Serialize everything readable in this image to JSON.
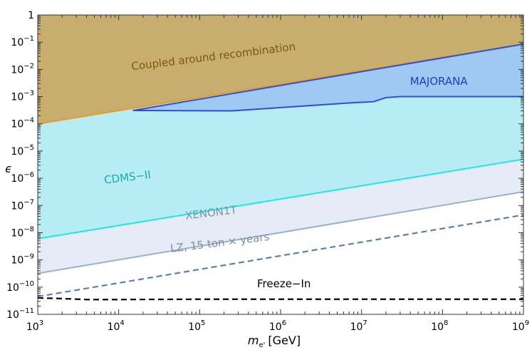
{
  "chart_data": {
    "type": "area",
    "xlabel": "m",
    "xlabel_sub": "e'",
    "xlabel_unit": "[GeV]",
    "ylabel": "ϵ",
    "x_scale": "log",
    "y_scale": "log",
    "xlim": [
      1000.0,
      1000000000.0
    ],
    "ylim": [
      1e-11,
      1
    ],
    "x_ticks": [
      {
        "value": 1000.0,
        "label": "10",
        "exp": "3"
      },
      {
        "value": 10000.0,
        "label": "10",
        "exp": "4"
      },
      {
        "value": 100000.0,
        "label": "10",
        "exp": "5"
      },
      {
        "value": 1000000.0,
        "label": "10",
        "exp": "6"
      },
      {
        "value": 10000000.0,
        "label": "10",
        "exp": "7"
      },
      {
        "value": 100000000.0,
        "label": "10",
        "exp": "8"
      },
      {
        "value": 1000000000.0,
        "label": "10",
        "exp": "9"
      }
    ],
    "y_ticks": [
      {
        "value": 1,
        "label": "1",
        "exp": ""
      },
      {
        "value": 0.1,
        "label": "10",
        "exp": "−1"
      },
      {
        "value": 0.01,
        "label": "10",
        "exp": "−2"
      },
      {
        "value": 0.001,
        "label": "10",
        "exp": "−3"
      },
      {
        "value": 0.0001,
        "label": "10",
        "exp": "−4"
      },
      {
        "value": 1e-05,
        "label": "10",
        "exp": "−5"
      },
      {
        "value": 1e-06,
        "label": "10",
        "exp": "−6"
      },
      {
        "value": 1e-07,
        "label": "10",
        "exp": "−7"
      },
      {
        "value": 1e-08,
        "label": "10",
        "exp": "−8"
      },
      {
        "value": 1e-09,
        "label": "10",
        "exp": "−9"
      },
      {
        "value": 1e-10,
        "label": "10",
        "exp": "−10"
      },
      {
        "value": 1e-11,
        "label": "10",
        "exp": "−11"
      }
    ],
    "series": [
      {
        "name": "Coupled around recombination",
        "kind": "filled-above",
        "fill": "#c8ae6e",
        "stroke": "#e69a2e",
        "x": [
          1000.0,
          1000000000.0
        ],
        "y": [
          0.0001,
          0.085
        ],
        "label_at": [
          150000.0,
          0.022
        ],
        "label_angle": -7,
        "label_color": "#7a5810"
      },
      {
        "name": "MAJORANA",
        "kind": "region",
        "fill": "#9fc8f2",
        "stroke": "#2b4fd8",
        "upper_x": [
          15000.0,
          1000000000.0
        ],
        "upper_y": [
          0.00031,
          0.085
        ],
        "lower_x": [
          15000.0,
          20000.0,
          250000.0,
          8000000.0,
          14000000.0,
          20000000.0,
          30000000.0,
          100000000.0,
          1000000000.0
        ],
        "lower_y": [
          0.00031,
          0.00031,
          0.0003,
          0.0006,
          0.00065,
          0.00092,
          0.001,
          0.001,
          0.001
        ],
        "label_at": [
          90000000.0,
          0.0027
        ],
        "label_color": "#1f3fc0"
      },
      {
        "name": "CDMS−II",
        "kind": "filled-above",
        "fill": "#b8ecf4",
        "stroke": "#22e4ee",
        "x": [
          1000.0,
          1000000000.0
        ],
        "y": [
          6e-09,
          5e-06
        ],
        "label_at": [
          13000.0,
          8e-07
        ],
        "label_angle": -7,
        "label_color": "#1aa8b0"
      },
      {
        "name": "XENON1T",
        "kind": "filled-above",
        "fill": "#e6ecf5",
        "stroke": "#9ab0cc",
        "x": [
          1000.0,
          1000000000.0
        ],
        "y": [
          3.2e-10,
          3.2e-07
        ],
        "label_at": [
          140000.0,
          4e-08
        ],
        "label_angle": -7,
        "label_color": "#7f93a8"
      },
      {
        "name": "LZ, 15 ton × years",
        "kind": "dashed-line",
        "stroke": "#5a80ad",
        "x": [
          1000.0,
          1000000000.0
        ],
        "y": [
          4.5e-11,
          4.5e-08
        ],
        "label_at": [
          180000.0,
          3.2e-09
        ],
        "label_angle": -7,
        "label_color": "#7d8da0"
      },
      {
        "name": "Freeze−In",
        "kind": "dashed-line",
        "stroke": "#000000",
        "x": [
          1000.0,
          2000.0,
          4000.0,
          10000.0,
          100000.0,
          1000000.0,
          10000000.0,
          100000000.0,
          1000000000.0
        ],
        "y": [
          4e-11,
          3.8e-11,
          3.5e-11,
          3.5e-11,
          3.6e-11,
          3.6e-11,
          3.6e-11,
          3.6e-11,
          3.6e-11
        ],
        "label_at": [
          1100000.0,
          1e-10
        ],
        "label_angle": 0,
        "label_color": "#000000"
      }
    ]
  }
}
